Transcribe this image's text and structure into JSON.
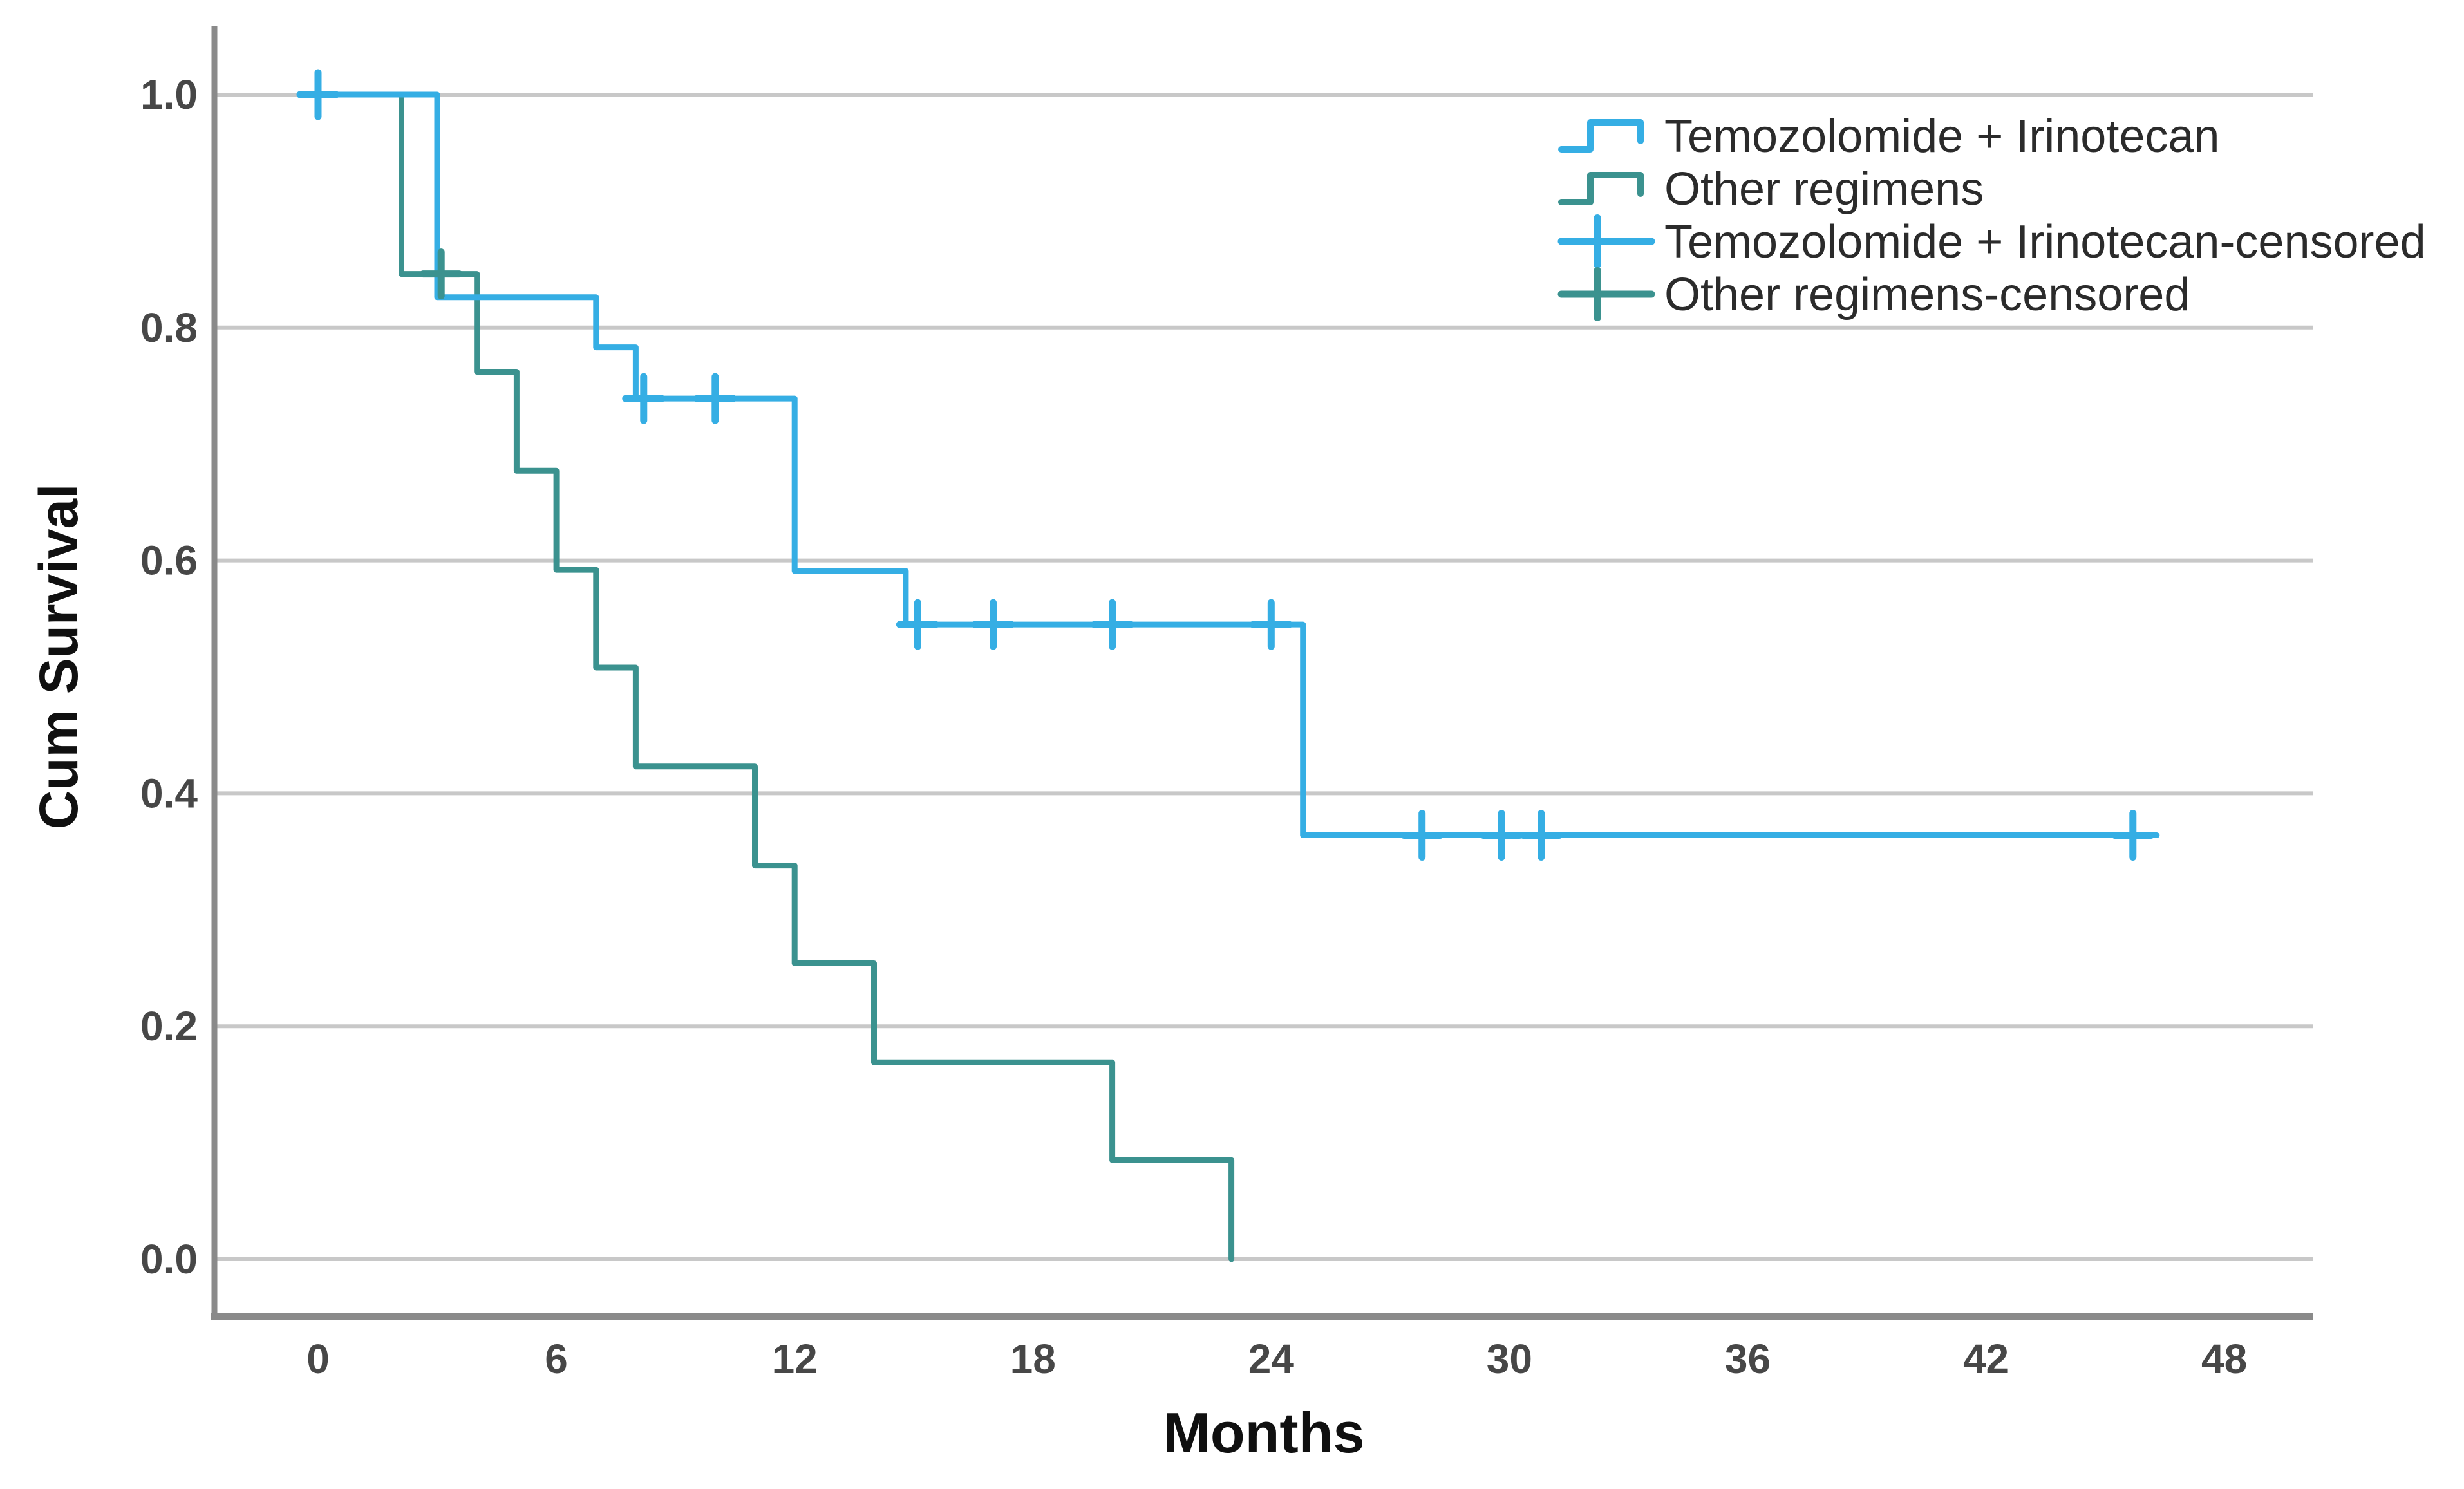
{
  "page": {
    "background": "#FFFFFF"
  },
  "chart_data": {
    "type": "line",
    "subtype": "kaplan_meier_step_plot",
    "title": "",
    "xlabel": "Months",
    "ylabel": "Cum Survival",
    "x_ticks": [
      "0",
      "6",
      "12",
      "18",
      "24",
      "30",
      "36",
      "42",
      "48"
    ],
    "y_ticks": [
      "0.0",
      "0.2",
      "0.4",
      "0.6",
      "0.8",
      "1.0"
    ],
    "xlim": [
      0,
      48
    ],
    "ylim": [
      0.0,
      1.0
    ],
    "grid": "horizontal-only",
    "legend_position": "inside-top-right",
    "series": [
      {
        "name": "Temozolomide + Irinotecan",
        "role": "survival-curve",
        "color": "#35AEE4",
        "step_points": [
          [
            0,
            1.0
          ],
          [
            3,
            1.0
          ],
          [
            3,
            0.826
          ],
          [
            7,
            0.826
          ],
          [
            7,
            0.783
          ],
          [
            8,
            0.783
          ],
          [
            8,
            0.739
          ],
          [
            12,
            0.739
          ],
          [
            12,
            0.591
          ],
          [
            14.8,
            0.591
          ],
          [
            14.8,
            0.545
          ],
          [
            24.8,
            0.545
          ],
          [
            24.8,
            0.364
          ],
          [
            46.3,
            0.364
          ]
        ]
      },
      {
        "name": "Other regimens",
        "role": "survival-curve",
        "color": "#3B928F",
        "step_points": [
          [
            0,
            1.0
          ],
          [
            2.1,
            1.0
          ],
          [
            2.1,
            0.846
          ],
          [
            4,
            0.846
          ],
          [
            4,
            0.762
          ],
          [
            5,
            0.762
          ],
          [
            5,
            0.677
          ],
          [
            6,
            0.677
          ],
          [
            6,
            0.592
          ],
          [
            7,
            0.592
          ],
          [
            7,
            0.508
          ],
          [
            8,
            0.508
          ],
          [
            8,
            0.423
          ],
          [
            11,
            0.423
          ],
          [
            11,
            0.338
          ],
          [
            12,
            0.338
          ],
          [
            12,
            0.254
          ],
          [
            14,
            0.254
          ],
          [
            14,
            0.169
          ],
          [
            20,
            0.169
          ],
          [
            20,
            0.085
          ],
          [
            23,
            0.085
          ],
          [
            23,
            0.0
          ]
        ]
      },
      {
        "name": "Temozolomide + Irinotecan-censored",
        "role": "censor-marks",
        "color": "#35AEE4",
        "points": [
          [
            0,
            1.0
          ],
          [
            8.2,
            0.739
          ],
          [
            10,
            0.739
          ],
          [
            15.1,
            0.545
          ],
          [
            17,
            0.545
          ],
          [
            20,
            0.545
          ],
          [
            24,
            0.545
          ],
          [
            27.8,
            0.364
          ],
          [
            29.8,
            0.364
          ],
          [
            30.8,
            0.364
          ],
          [
            45.7,
            0.364
          ]
        ]
      },
      {
        "name": "Other regimens-censored",
        "role": "censor-marks",
        "color": "#3B928F",
        "points": [
          [
            3.1,
            0.846
          ]
        ]
      }
    ],
    "styles": {
      "grid_color": "#C8C8C8",
      "axis_color": "#8A8A8A",
      "tick_label_color": "#474747",
      "axis_title_color": "#101010",
      "legend_text_color": "#2B2B2B",
      "background": "#FFFFFF"
    }
  }
}
